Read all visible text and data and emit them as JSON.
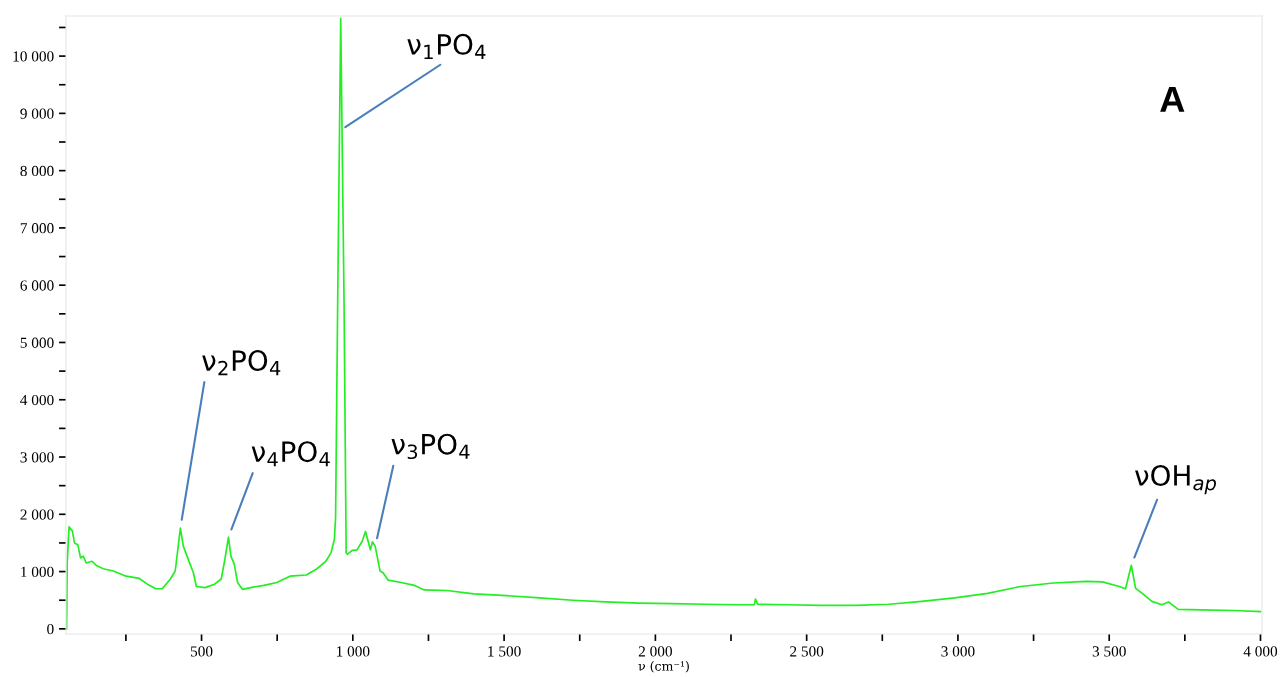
{
  "chart_data": {
    "type": "line",
    "xlabel": "ν (cm⁻¹)",
    "x": [
      54,
      56,
      62,
      73,
      80,
      91,
      100,
      109,
      119,
      138,
      154,
      175,
      208,
      251,
      294,
      321,
      349,
      370,
      397,
      413,
      430,
      440,
      462,
      473,
      483,
      511,
      543,
      565,
      576,
      589,
      597,
      608,
      619,
      635,
      662,
      706,
      749,
      792,
      846,
      879,
      911,
      928,
      939,
      943,
      950,
      960,
      971,
      978,
      982,
      998,
      1014,
      1031,
      1042,
      1058,
      1065,
      1074,
      1090,
      1100,
      1117,
      1160,
      1203,
      1236,
      1311,
      1400,
      1508,
      1618,
      1727,
      1835,
      1945,
      2054,
      2163,
      2273,
      2327,
      2331,
      2338,
      2437,
      2546,
      2663,
      2772,
      2880,
      2989,
      3098,
      3207,
      3315,
      3424,
      3478,
      3533,
      3554,
      3573,
      3587,
      3609,
      3641,
      3674,
      3696,
      3728,
      3804,
      3913,
      4000
    ],
    "series": [
      {
        "color": "#22ee22",
        "values": [
          0,
          1150,
          1780,
          1710,
          1500,
          1470,
          1240,
          1270,
          1150,
          1180,
          1100,
          1050,
          1010,
          920,
          880,
          780,
          700,
          700,
          870,
          1010,
          1760,
          1440,
          1130,
          980,
          740,
          720,
          780,
          870,
          1180,
          1600,
          1270,
          1130,
          810,
          690,
          720,
          760,
          810,
          920,
          940,
          1040,
          1180,
          1330,
          1560,
          1940,
          5720,
          10660,
          5720,
          1330,
          1300,
          1370,
          1380,
          1530,
          1700,
          1380,
          1520,
          1440,
          1010,
          980,
          850,
          810,
          760,
          680,
          670,
          610,
          580,
          540,
          500,
          470,
          450,
          440,
          430,
          420,
          420,
          520,
          430,
          420,
          410,
          410,
          430,
          480,
          540,
          620,
          740,
          800,
          830,
          820,
          740,
          700,
          1110,
          710,
          620,
          480,
          420,
          470,
          340,
          330,
          320,
          300
        ]
      }
    ],
    "xlim": [
      52,
      4005
    ],
    "xticks": [
      {
        "value": 250,
        "label": null
      },
      500,
      {
        "value": 750,
        "label": null
      },
      {
        "value": 1000,
        "label": "1 000"
      },
      {
        "value": 1250,
        "label": null
      },
      {
        "value": 1500,
        "label": "1 500"
      },
      {
        "value": 1750,
        "label": null
      },
      {
        "value": 2000,
        "label": "2 000"
      },
      {
        "value": 2250,
        "label": null
      },
      {
        "value": 2500,
        "label": "2 500"
      },
      {
        "value": 2750,
        "label": null
      },
      {
        "value": 3000,
        "label": "3 000"
      },
      {
        "value": 3250,
        "label": null
      },
      {
        "value": 3500,
        "label": "3 500"
      },
      {
        "value": 3750,
        "label": null
      },
      {
        "value": 4000,
        "label": "4 000"
      }
    ],
    "ylim": [
      -90,
      10700
    ],
    "yticks": [
      0,
      {
        "value": 500,
        "label": null
      },
      {
        "value": 1000,
        "label": "1 000"
      },
      {
        "value": 1500,
        "label": null
      },
      {
        "value": 2000,
        "label": "2 000"
      },
      {
        "value": 2500,
        "label": null
      },
      {
        "value": 3000,
        "label": "3 000"
      },
      {
        "value": 3500,
        "label": null
      },
      {
        "value": 4000,
        "label": "4 000"
      },
      {
        "value": 4500,
        "label": null
      },
      {
        "value": 5000,
        "label": "5 000"
      },
      {
        "value": 5500,
        "label": null
      },
      {
        "value": 6000,
        "label": "6 000"
      },
      {
        "value": 6500,
        "label": null
      },
      {
        "value": 7000,
        "label": "7 000"
      },
      {
        "value": 7500,
        "label": null
      },
      {
        "value": 8000,
        "label": "8 000"
      },
      {
        "value": 8500,
        "label": null
      },
      {
        "value": 9000,
        "label": "9 000"
      },
      {
        "value": 9500,
        "label": null
      },
      {
        "value": 10000,
        "label": "10 000"
      },
      {
        "value": 10500,
        "label": null
      }
    ],
    "grid": false,
    "marker": "none",
    "line_style": "solid",
    "annotations": [
      {
        "text": "ν$_{1}$PO$_{4}$",
        "x": 975,
        "y": 8760
      },
      {
        "text": "ν$_{2}$PO$_{4}$",
        "x": 430,
        "y": 1760
      },
      {
        "text": "ν$_{4}$PO$_{4}$",
        "x": 589,
        "y": 1600
      },
      {
        "text": "ν$_{3}$PO$_{4}$",
        "x": 1074,
        "y": 1440
      },
      {
        "text": "νOH$_{ap}$",
        "x": 3573,
        "y": 1110
      },
      "A"
    ]
  }
}
